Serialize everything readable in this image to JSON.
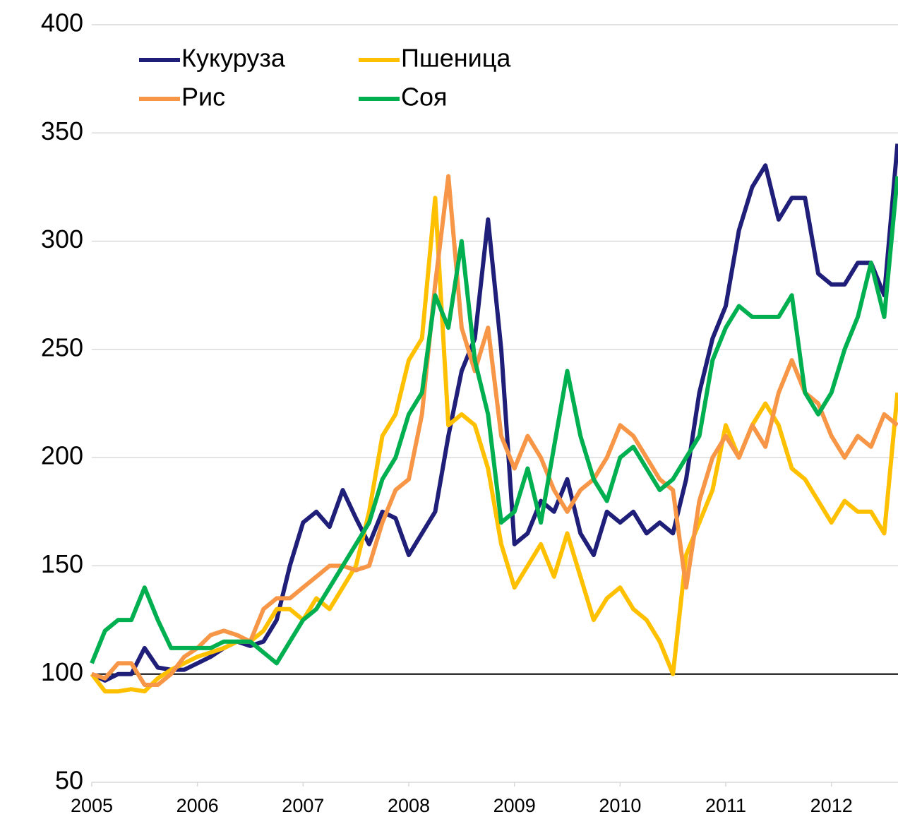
{
  "chart_data": {
    "type": "line",
    "x": [
      2005,
      2005.125,
      2005.25,
      2005.375,
      2005.5,
      2005.625,
      2005.75,
      2005.875,
      2006,
      2006.125,
      2006.25,
      2006.375,
      2006.5,
      2006.625,
      2006.75,
      2006.875,
      2007,
      2007.125,
      2007.25,
      2007.375,
      2007.5,
      2007.625,
      2007.75,
      2007.875,
      2008,
      2008.125,
      2008.25,
      2008.375,
      2008.5,
      2008.625,
      2008.75,
      2008.875,
      2009,
      2009.125,
      2009.25,
      2009.375,
      2009.5,
      2009.625,
      2009.75,
      2009.875,
      2010,
      2010.125,
      2010.25,
      2010.375,
      2010.5,
      2010.625,
      2010.75,
      2010.875,
      2011,
      2011.125,
      2011.25,
      2011.375,
      2011.5,
      2011.625,
      2011.75,
      2011.875,
      2012,
      2012.125,
      2012.25,
      2012.375,
      2012.5,
      2012.625
    ],
    "series": [
      {
        "name": "Кукуруза",
        "color": "#1f1f7a",
        "values": [
          100,
          97,
          100,
          100,
          112,
          103,
          102,
          102,
          105,
          108,
          112,
          115,
          113,
          115,
          125,
          150,
          170,
          175,
          168,
          185,
          172,
          160,
          175,
          172,
          155,
          165,
          175,
          210,
          240,
          255,
          310,
          250,
          160,
          165,
          180,
          175,
          190,
          165,
          155,
          175,
          170,
          175,
          165,
          170,
          165,
          190,
          230,
          255,
          270,
          305,
          325,
          335,
          310,
          320,
          320,
          285,
          280,
          280,
          290,
          290,
          275,
          345
        ]
      },
      {
        "name": "Пшеница",
        "color": "#ffc000",
        "values": [
          100,
          92,
          92,
          93,
          92,
          98,
          102,
          105,
          108,
          110,
          112,
          115,
          115,
          120,
          130,
          130,
          125,
          135,
          130,
          140,
          150,
          175,
          210,
          220,
          245,
          255,
          320,
          215,
          220,
          215,
          195,
          160,
          140,
          150,
          160,
          145,
          165,
          145,
          125,
          135,
          140,
          130,
          125,
          115,
          100,
          155,
          170,
          185,
          215,
          200,
          215,
          225,
          215,
          195,
          190,
          180,
          170,
          180,
          175,
          175,
          165,
          230
        ]
      },
      {
        "name": "Рис",
        "color": "#f79646",
        "values": [
          100,
          98,
          105,
          105,
          95,
          95,
          100,
          108,
          112,
          118,
          120,
          118,
          115,
          130,
          135,
          135,
          140,
          145,
          150,
          150,
          148,
          150,
          170,
          185,
          190,
          220,
          280,
          330,
          260,
          240,
          260,
          210,
          195,
          210,
          200,
          185,
          175,
          185,
          190,
          200,
          215,
          210,
          200,
          190,
          185,
          140,
          180,
          200,
          210,
          200,
          215,
          205,
          230,
          245,
          230,
          225,
          210,
          200,
          210,
          205,
          220,
          215
        ]
      },
      {
        "name": "Соя",
        "color": "#00b050",
        "values": [
          105,
          120,
          125,
          125,
          140,
          125,
          112,
          112,
          112,
          112,
          115,
          115,
          115,
          110,
          105,
          115,
          125,
          130,
          140,
          150,
          160,
          170,
          190,
          200,
          220,
          230,
          275,
          260,
          300,
          245,
          220,
          170,
          175,
          195,
          170,
          205,
          240,
          210,
          190,
          180,
          200,
          205,
          195,
          185,
          190,
          200,
          210,
          245,
          260,
          270,
          265,
          265,
          265,
          275,
          230,
          220,
          230,
          250,
          265,
          290,
          265,
          330
        ]
      }
    ],
    "xlim": [
      2005,
      2012.63
    ],
    "xticks": [
      2005,
      2006,
      2007,
      2008,
      2009,
      2010,
      2011,
      2012
    ],
    "ylim": [
      50,
      400
    ],
    "yticks": [
      50,
      100,
      150,
      200,
      250,
      300,
      350,
      400
    ],
    "hline": 100,
    "grid": true,
    "legend": "upper-left"
  }
}
